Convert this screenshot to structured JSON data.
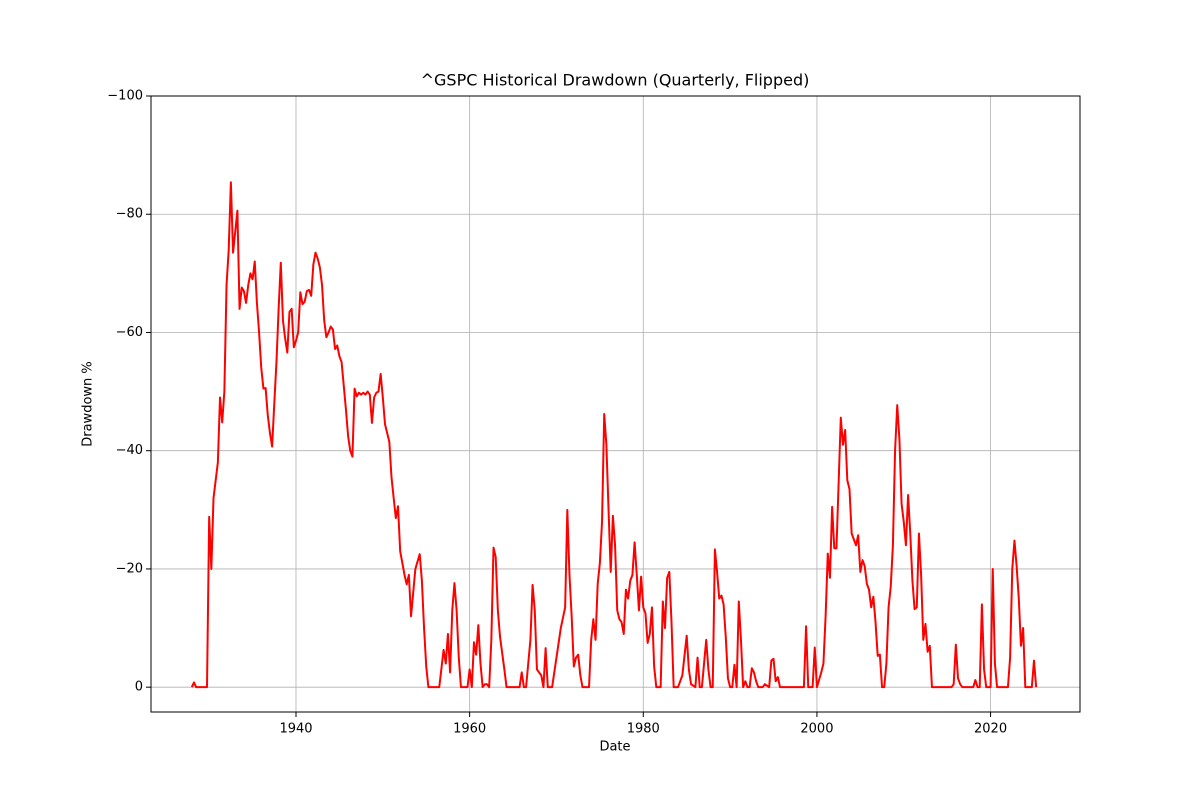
{
  "chart_data": {
    "type": "line",
    "title": "^GSPC Historical Drawdown (Quarterly, Flipped)",
    "x_label": "Date",
    "y_label": "Drawdown %",
    "color": "#ff0000",
    "grid": true,
    "xlim": [
      1923.3,
      2030.3
    ],
    "xticks": [
      1940,
      1960,
      1980,
      2000,
      2020
    ],
    "ylim": [
      4.2,
      -100
    ],
    "yticks": [
      {
        "value": -100,
        "label": "−100"
      },
      {
        "value": -80,
        "label": "−80"
      },
      {
        "value": -60,
        "label": "−60"
      },
      {
        "value": -40,
        "label": "−40"
      },
      {
        "value": -20,
        "label": "−20"
      },
      0
    ],
    "x": [
      1928,
      1928.25,
      1928.5,
      1929.75,
      1930,
      1930.25,
      1930.5,
      1931,
      1931.25,
      1931.5,
      1931.75,
      1932,
      1932.25,
      1932.5,
      1932.75,
      1933,
      1933.25,
      1933.5,
      1933.75,
      1934,
      1934.25,
      1934.5,
      1934.75,
      1935,
      1935.25,
      1935.5,
      1935.75,
      1936,
      1936.25,
      1936.5,
      1936.75,
      1937,
      1937.25,
      1937.5,
      1937.75,
      1938,
      1938.25,
      1938.5,
      1938.75,
      1939,
      1939.25,
      1939.5,
      1939.75,
      1940,
      1940.25,
      1940.5,
      1940.75,
      1941,
      1941.25,
      1941.5,
      1941.75,
      1942,
      1942.25,
      1942.5,
      1942.75,
      1943,
      1943.25,
      1943.5,
      1943.75,
      1944,
      1944.25,
      1944.5,
      1944.75,
      1945,
      1945.25,
      1945.5,
      1945.75,
      1946,
      1946.25,
      1946.5,
      1946.75,
      1947,
      1947.25,
      1947.5,
      1947.75,
      1948,
      1948.25,
      1948.5,
      1948.75,
      1949,
      1949.25,
      1949.5,
      1949.75,
      1950,
      1950.25,
      1950.5,
      1950.75,
      1951,
      1951.25,
      1951.5,
      1951.75,
      1952,
      1952.25,
      1952.5,
      1952.75,
      1953,
      1953.25,
      1953.5,
      1953.75,
      1954.25,
      1954.5,
      1954.75,
      1955,
      1955.25,
      1956.5,
      1957,
      1957.25,
      1957.5,
      1957.75,
      1958,
      1958.25,
      1958.5,
      1958.75,
      1959,
      1959.75,
      1960,
      1960.25,
      1960.5,
      1960.75,
      1961,
      1961.25,
      1961.5,
      1961.75,
      1962,
      1962.25,
      1962.5,
      1962.75,
      1963,
      1963.25,
      1963.5,
      1964,
      1964.25,
      1965.75,
      1966,
      1966.25,
      1966.5,
      1967,
      1967.25,
      1967.5,
      1967.75,
      1968.25,
      1968.5,
      1968.75,
      1969,
      1969.5,
      1970,
      1970.5,
      1971,
      1971.25,
      1971.5,
      1971.75,
      1972,
      1972.25,
      1972.5,
      1972.75,
      1973,
      1973.75,
      1974,
      1974.25,
      1974.5,
      1974.75,
      1975,
      1975.25,
      1975.5,
      1975.75,
      1976,
      1976.25,
      1976.5,
      1976.75,
      1977,
      1977.25,
      1977.5,
      1977.75,
      1978,
      1978.25,
      1978.5,
      1978.75,
      1979,
      1979.25,
      1979.5,
      1979.75,
      1980,
      1980.25,
      1980.5,
      1980.75,
      1981,
      1981.25,
      1981.5,
      1982,
      1982.25,
      1982.5,
      1982.75,
      1983,
      1983.25,
      1983.5,
      1984,
      1984.5,
      1985,
      1985.25,
      1985.5,
      1986,
      1986.25,
      1986.5,
      1986.75,
      1987.25,
      1987.5,
      1987.75,
      1988,
      1988.25,
      1988.5,
      1988.75,
      1989,
      1989.25,
      1989.5,
      1989.75,
      1990,
      1990.25,
      1990.5,
      1990.75,
      1991,
      1991.25,
      1991.5,
      1991.75,
      1992,
      1992.25,
      1992.5,
      1992.75,
      1993,
      1993.25,
      1993.75,
      1994,
      1994.5,
      1994.75,
      1995,
      1995.25,
      1995.5,
      1995.75,
      1998.5,
      1998.75,
      1999,
      1999.5,
      1999.75,
      2000,
      2000.5,
      2000.75,
      2001,
      2001.25,
      2001.5,
      2001.75,
      2002,
      2002.25,
      2002.75,
      2003,
      2003.25,
      2003.5,
      2003.75,
      2004,
      2004.5,
      2004.75,
      2005,
      2005.25,
      2005.5,
      2005.75,
      2006,
      2006.25,
      2006.5,
      2006.75,
      2007,
      2007.25,
      2007.5,
      2007.75,
      2008,
      2008.25,
      2008.5,
      2008.75,
      2009,
      2009.25,
      2009.5,
      2009.75,
      2010,
      2010.25,
      2010.5,
      2010.75,
      2011,
      2011.25,
      2011.5,
      2011.75,
      2012,
      2012.25,
      2012.5,
      2012.75,
      2013,
      2013.25,
      2015.5,
      2015.75,
      2016,
      2016.25,
      2016.5,
      2016.75,
      2018,
      2018.25,
      2018.5,
      2018.75,
      2019,
      2019.25,
      2019.5,
      2019.75,
      2020,
      2020.25,
      2020.5,
      2020.75,
      2022,
      2022.25,
      2022.5,
      2022.75,
      2023,
      2023.25,
      2023.5,
      2023.75,
      2024,
      2024.75,
      2025,
      2025.25
    ],
    "values": [
      0,
      -0.8,
      0,
      0,
      -28.8,
      -20,
      -32,
      -38,
      -49,
      -44.8,
      -50,
      -68,
      -74,
      -85.4,
      -73.5,
      -77,
      -80.6,
      -64,
      -67.6,
      -67,
      -65,
      -68,
      -70,
      -69,
      -72,
      -65,
      -60,
      -54,
      -50.5,
      -50.6,
      -46,
      -43,
      -40.7,
      -48,
      -55,
      -64,
      -71.8,
      -62,
      -59,
      -56.6,
      -63.5,
      -64,
      -57.5,
      -58.6,
      -60,
      -66.8,
      -64.8,
      -65.2,
      -67,
      -67.2,
      -66.2,
      -71.5,
      -73.5,
      -72.5,
      -71,
      -68,
      -62,
      -59.2,
      -60,
      -61,
      -60.5,
      -57.2,
      -57.8,
      -56,
      -55,
      -51,
      -47,
      -42.5,
      -40,
      -39,
      -50.5,
      -49.2,
      -49.8,
      -49.5,
      -49.8,
      -49.5,
      -50,
      -49.5,
      -44.7,
      -49,
      -49.8,
      -50,
      -53,
      -49,
      -44.5,
      -43,
      -41.5,
      -35.5,
      -32,
      -28.6,
      -30.6,
      -23,
      -21,
      -19,
      -17.4,
      -19,
      -12,
      -16,
      -20,
      -22.5,
      -18,
      -10,
      -3.5,
      0,
      0,
      -6.3,
      -4,
      -9,
      -2.5,
      -13,
      -17.6,
      -13,
      -5,
      0,
      0,
      -3,
      0,
      -7.6,
      -5.5,
      -10.5,
      -4,
      0,
      -0.5,
      -0.5,
      0,
      -8,
      -23.6,
      -22,
      -13,
      -8.5,
      -3,
      0,
      0,
      -2.5,
      0,
      0,
      -8,
      -17.3,
      -13,
      -3,
      -2,
      0,
      -6.6,
      0,
      0,
      -5,
      -10,
      -13.5,
      -30,
      -19,
      -12,
      -3.5,
      -5,
      -5.5,
      -2,
      0,
      0,
      -8,
      -11.5,
      -8,
      -17.5,
      -21,
      -28,
      -46.2,
      -41,
      -30,
      -19.5,
      -29,
      -24,
      -13,
      -11.5,
      -11,
      -9,
      -16.5,
      -15,
      -18,
      -19,
      -24.5,
      -19,
      -13,
      -18.7,
      -13.5,
      -12.5,
      -7.5,
      -9,
      -13.5,
      -3.5,
      0,
      0,
      -14.5,
      -10,
      -18.5,
      -19.5,
      -11,
      0,
      0,
      -2,
      -8.7,
      -3,
      -0.5,
      0,
      -5,
      0,
      0,
      -8,
      -3,
      0,
      0,
      -23.3,
      -19.5,
      -15,
      -15.5,
      -14,
      -8.5,
      -1.5,
      0,
      0,
      -3.8,
      0,
      -14.5,
      -8,
      0,
      -1,
      0,
      0,
      -3.2,
      -2.5,
      -1,
      0,
      0,
      -0.5,
      0,
      -4.5,
      -4.8,
      -1,
      -1.7,
      0,
      0,
      -10.3,
      0,
      0,
      -6.7,
      0,
      -2.5,
      -4,
      -12,
      -22.6,
      -18.5,
      -30.5,
      -23.5,
      -23.5,
      -45.6,
      -41,
      -43.5,
      -35,
      -33.5,
      -26,
      -24,
      -25.7,
      -19.5,
      -21.5,
      -20.5,
      -17.5,
      -16.5,
      -13.5,
      -15.3,
      -11,
      -5.3,
      -5.5,
      0,
      0,
      -4,
      -13.5,
      -17,
      -24,
      -40,
      -47.7,
      -42,
      -31,
      -28,
      -24,
      -32.5,
      -26,
      -18,
      -13.2,
      -13.5,
      -26,
      -19,
      -8,
      -10.7,
      -6,
      -7,
      0,
      0,
      -0.5,
      -7.2,
      -1.5,
      -0.5,
      0,
      0,
      -1.2,
      0,
      0,
      -14,
      -3,
      0,
      0,
      0,
      -20,
      -4,
      0,
      0,
      -5,
      -20,
      -24.8,
      -20.5,
      -15,
      -7,
      -10,
      0,
      0,
      -4.5,
      0
    ]
  }
}
